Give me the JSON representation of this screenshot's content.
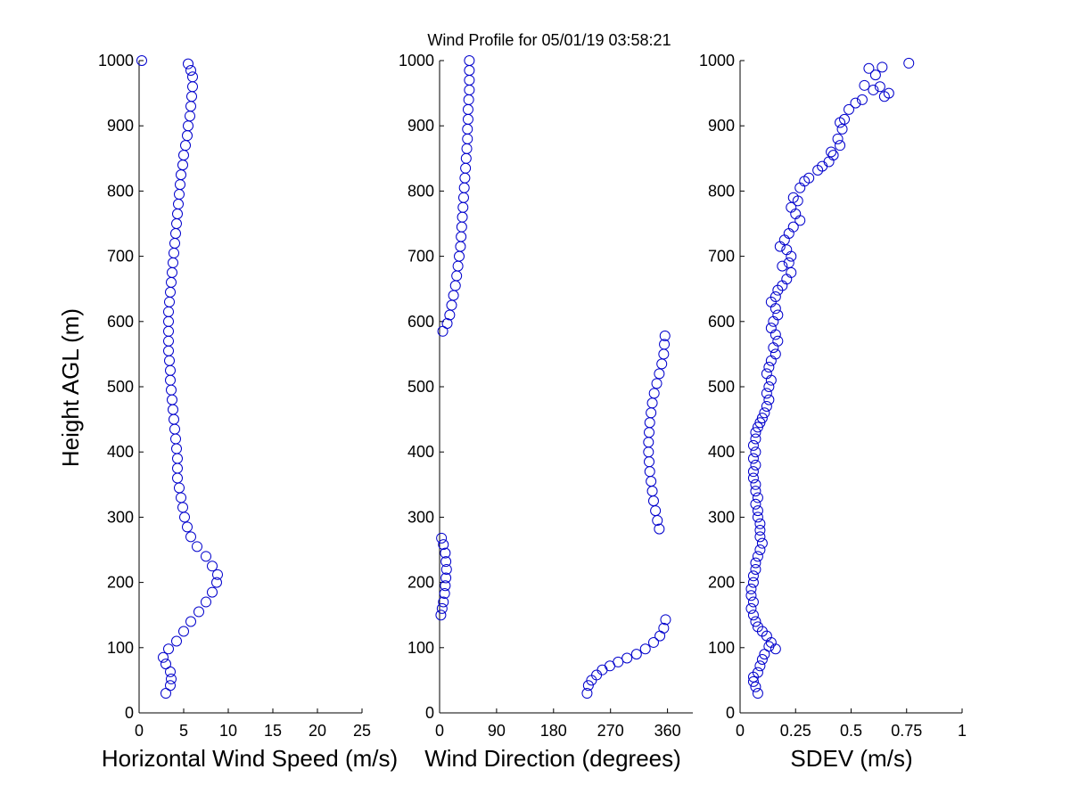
{
  "chart_data": {
    "title": "Wind Profile for  05/01/19 03:58:21",
    "ylabel": "Height AGL (m)",
    "ylim": [
      0,
      1000
    ],
    "yticks": [
      0,
      100,
      200,
      300,
      400,
      500,
      600,
      700,
      800,
      900,
      1000
    ],
    "marker_color": "#0000cc",
    "panels": [
      {
        "type": "scatter",
        "xlabel": "Horizontal Wind Speed (m/s)",
        "xlim": [
          0,
          25
        ],
        "xticks": [
          0,
          5,
          10,
          15,
          20,
          25
        ],
        "points": [
          [
            0.3,
            1000
          ],
          [
            5.5,
            995
          ],
          [
            5.8,
            985
          ],
          [
            6.0,
            975
          ],
          [
            6.0,
            960
          ],
          [
            5.9,
            945
          ],
          [
            5.8,
            930
          ],
          [
            5.7,
            915
          ],
          [
            5.5,
            900
          ],
          [
            5.4,
            885
          ],
          [
            5.2,
            870
          ],
          [
            5.0,
            855
          ],
          [
            4.9,
            840
          ],
          [
            4.7,
            825
          ],
          [
            4.6,
            810
          ],
          [
            4.5,
            795
          ],
          [
            4.4,
            780
          ],
          [
            4.3,
            765
          ],
          [
            4.2,
            750
          ],
          [
            4.1,
            735
          ],
          [
            4.0,
            720
          ],
          [
            3.9,
            705
          ],
          [
            3.8,
            690
          ],
          [
            3.7,
            675
          ],
          [
            3.6,
            660
          ],
          [
            3.5,
            645
          ],
          [
            3.4,
            630
          ],
          [
            3.3,
            615
          ],
          [
            3.3,
            600
          ],
          [
            3.3,
            585
          ],
          [
            3.3,
            570
          ],
          [
            3.3,
            555
          ],
          [
            3.4,
            540
          ],
          [
            3.5,
            525
          ],
          [
            3.5,
            510
          ],
          [
            3.6,
            495
          ],
          [
            3.7,
            480
          ],
          [
            3.8,
            465
          ],
          [
            3.9,
            450
          ],
          [
            4.0,
            435
          ],
          [
            4.1,
            420
          ],
          [
            4.2,
            405
          ],
          [
            4.3,
            390
          ],
          [
            4.3,
            375
          ],
          [
            4.3,
            360
          ],
          [
            4.5,
            345
          ],
          [
            4.7,
            330
          ],
          [
            4.9,
            315
          ],
          [
            5.1,
            300
          ],
          [
            5.4,
            285
          ],
          [
            5.8,
            270
          ],
          [
            6.5,
            255
          ],
          [
            7.5,
            240
          ],
          [
            8.2,
            225
          ],
          [
            8.8,
            212
          ],
          [
            8.7,
            200
          ],
          [
            8.2,
            185
          ],
          [
            7.5,
            170
          ],
          [
            6.7,
            155
          ],
          [
            5.8,
            140
          ],
          [
            5.0,
            125
          ],
          [
            4.2,
            110
          ],
          [
            3.3,
            98
          ],
          [
            2.7,
            85
          ],
          [
            3.0,
            75
          ],
          [
            3.5,
            63
          ],
          [
            3.6,
            52
          ],
          [
            3.5,
            42
          ],
          [
            3.0,
            30
          ]
        ]
      },
      {
        "type": "scatter",
        "xlabel": "Wind Direction (degrees)",
        "xlim": [
          0,
          400
        ],
        "xticks": [
          0,
          90,
          180,
          270,
          360
        ],
        "points": [
          [
            47,
            1000
          ],
          [
            47,
            985
          ],
          [
            47,
            970
          ],
          [
            47,
            955
          ],
          [
            46,
            940
          ],
          [
            45,
            925
          ],
          [
            45,
            910
          ],
          [
            44,
            895
          ],
          [
            44,
            880
          ],
          [
            43,
            865
          ],
          [
            42,
            850
          ],
          [
            41,
            835
          ],
          [
            40,
            820
          ],
          [
            39,
            805
          ],
          [
            38,
            790
          ],
          [
            37,
            775
          ],
          [
            36,
            760
          ],
          [
            35,
            745
          ],
          [
            34,
            730
          ],
          [
            33,
            715
          ],
          [
            31,
            700
          ],
          [
            29,
            685
          ],
          [
            27,
            670
          ],
          [
            25,
            655
          ],
          [
            22,
            640
          ],
          [
            19,
            625
          ],
          [
            16,
            610
          ],
          [
            12,
            597
          ],
          [
            5,
            585
          ],
          [
            356,
            578
          ],
          [
            355,
            565
          ],
          [
            354,
            550
          ],
          [
            351,
            535
          ],
          [
            347,
            520
          ],
          [
            343,
            505
          ],
          [
            339,
            490
          ],
          [
            336,
            475
          ],
          [
            334,
            460
          ],
          [
            332,
            445
          ],
          [
            331,
            430
          ],
          [
            330,
            415
          ],
          [
            330,
            400
          ],
          [
            331,
            385
          ],
          [
            332,
            370
          ],
          [
            334,
            355
          ],
          [
            336,
            340
          ],
          [
            338,
            325
          ],
          [
            341,
            310
          ],
          [
            344,
            295
          ],
          [
            347,
            282
          ],
          [
            3,
            268
          ],
          [
            6,
            258
          ],
          [
            9,
            245
          ],
          [
            10,
            232
          ],
          [
            11,
            220
          ],
          [
            10,
            207
          ],
          [
            9,
            195
          ],
          [
            8,
            183
          ],
          [
            6,
            170
          ],
          [
            4,
            160
          ],
          [
            2,
            150
          ],
          [
            357,
            143
          ],
          [
            354,
            130
          ],
          [
            348,
            118
          ],
          [
            338,
            108
          ],
          [
            325,
            98
          ],
          [
            311,
            90
          ],
          [
            296,
            84
          ],
          [
            282,
            78
          ],
          [
            269,
            72
          ],
          [
            257,
            66
          ],
          [
            248,
            58
          ],
          [
            240,
            50
          ],
          [
            235,
            42
          ],
          [
            233,
            30
          ]
        ]
      },
      {
        "type": "scatter",
        "xlabel": "SDEV  (m/s)",
        "xlim": [
          0,
          1
        ],
        "xticks": [
          0,
          0.25,
          0.5,
          0.75,
          1
        ],
        "xticklabels": [
          "0",
          "0.25",
          "0.5",
          "0.75",
          "1"
        ],
        "points": [
          [
            0.76,
            996
          ],
          [
            0.58,
            988
          ],
          [
            0.64,
            990
          ],
          [
            0.61,
            978
          ],
          [
            0.56,
            962
          ],
          [
            0.63,
            960
          ],
          [
            0.6,
            955
          ],
          [
            0.67,
            950
          ],
          [
            0.65,
            945
          ],
          [
            0.55,
            940
          ],
          [
            0.52,
            935
          ],
          [
            0.49,
            925
          ],
          [
            0.45,
            905
          ],
          [
            0.47,
            910
          ],
          [
            0.46,
            895
          ],
          [
            0.44,
            880
          ],
          [
            0.45,
            870
          ],
          [
            0.41,
            860
          ],
          [
            0.42,
            855
          ],
          [
            0.4,
            845
          ],
          [
            0.37,
            838
          ],
          [
            0.35,
            832
          ],
          [
            0.31,
            820
          ],
          [
            0.29,
            815
          ],
          [
            0.27,
            805
          ],
          [
            0.24,
            790
          ],
          [
            0.26,
            785
          ],
          [
            0.23,
            775
          ],
          [
            0.25,
            765
          ],
          [
            0.27,
            755
          ],
          [
            0.24,
            745
          ],
          [
            0.22,
            735
          ],
          [
            0.2,
            725
          ],
          [
            0.18,
            715
          ],
          [
            0.21,
            710
          ],
          [
            0.23,
            700
          ],
          [
            0.22,
            690
          ],
          [
            0.19,
            685
          ],
          [
            0.23,
            675
          ],
          [
            0.21,
            665
          ],
          [
            0.19,
            655
          ],
          [
            0.17,
            648
          ],
          [
            0.16,
            638
          ],
          [
            0.14,
            630
          ],
          [
            0.16,
            620
          ],
          [
            0.17,
            610
          ],
          [
            0.15,
            600
          ],
          [
            0.14,
            590
          ],
          [
            0.16,
            580
          ],
          [
            0.17,
            570
          ],
          [
            0.15,
            560
          ],
          [
            0.16,
            550
          ],
          [
            0.14,
            540
          ],
          [
            0.13,
            530
          ],
          [
            0.12,
            520
          ],
          [
            0.14,
            510
          ],
          [
            0.13,
            500
          ],
          [
            0.12,
            490
          ],
          [
            0.13,
            480
          ],
          [
            0.12,
            470
          ],
          [
            0.11,
            460
          ],
          [
            0.1,
            452
          ],
          [
            0.09,
            445
          ],
          [
            0.08,
            438
          ],
          [
            0.07,
            430
          ],
          [
            0.07,
            420
          ],
          [
            0.06,
            410
          ],
          [
            0.07,
            400
          ],
          [
            0.06,
            390
          ],
          [
            0.07,
            380
          ],
          [
            0.06,
            370
          ],
          [
            0.06,
            360
          ],
          [
            0.07,
            350
          ],
          [
            0.07,
            340
          ],
          [
            0.08,
            330
          ],
          [
            0.07,
            320
          ],
          [
            0.08,
            310
          ],
          [
            0.08,
            300
          ],
          [
            0.09,
            290
          ],
          [
            0.09,
            280
          ],
          [
            0.09,
            270
          ],
          [
            0.1,
            260
          ],
          [
            0.09,
            250
          ],
          [
            0.08,
            240
          ],
          [
            0.07,
            230
          ],
          [
            0.07,
            220
          ],
          [
            0.06,
            210
          ],
          [
            0.06,
            200
          ],
          [
            0.05,
            190
          ],
          [
            0.05,
            180
          ],
          [
            0.06,
            170
          ],
          [
            0.05,
            160
          ],
          [
            0.06,
            150
          ],
          [
            0.07,
            140
          ],
          [
            0.08,
            132
          ],
          [
            0.1,
            125
          ],
          [
            0.12,
            118
          ],
          [
            0.14,
            108
          ],
          [
            0.13,
            102
          ],
          [
            0.16,
            98
          ],
          [
            0.11,
            90
          ],
          [
            0.1,
            82
          ],
          [
            0.09,
            72
          ],
          [
            0.08,
            62
          ],
          [
            0.06,
            55
          ],
          [
            0.06,
            48
          ],
          [
            0.07,
            40
          ],
          [
            0.08,
            30
          ]
        ]
      }
    ]
  }
}
